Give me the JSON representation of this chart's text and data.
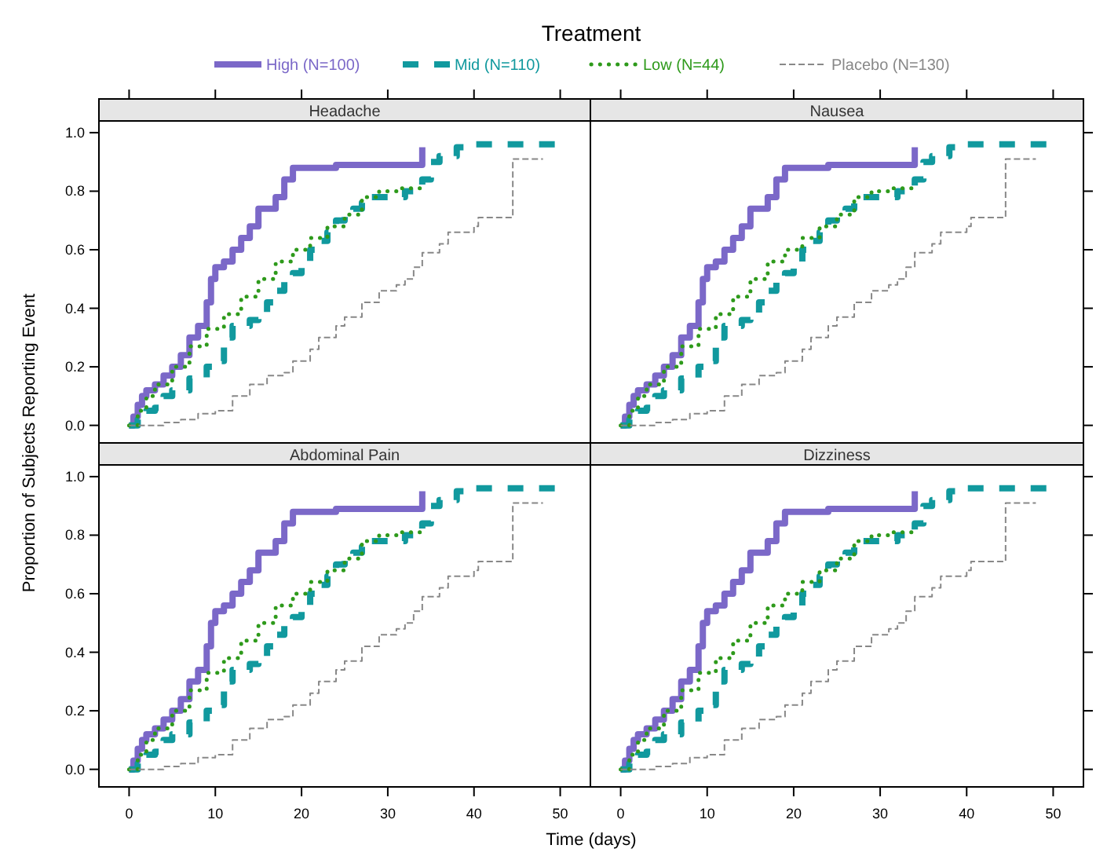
{
  "chart_data": [
    {
      "type": "step",
      "title": "Headache",
      "legend_title": "Treatment",
      "legend": "top",
      "ylabel": "Proportion of Subjects Reporting Event",
      "xlim": [
        -3.5,
        53.5
      ],
      "ylim": [
        -0.06,
        1.04
      ],
      "xticks": [
        {
          "value": 0,
          "label": null
        },
        {
          "value": 10,
          "label": null
        },
        {
          "value": 20,
          "label": null
        },
        {
          "value": 30,
          "label": null
        },
        {
          "value": 40,
          "label": null
        },
        {
          "value": 50,
          "label": null
        }
      ],
      "yticks": [
        {
          "value": 0,
          "label": "0.0"
        },
        {
          "value": 0.2,
          "label": "0.2"
        },
        {
          "value": 0.4,
          "label": "0.4"
        },
        {
          "value": 0.6,
          "label": "0.6"
        },
        {
          "value": 0.8,
          "label": "0.8"
        },
        {
          "value": 1,
          "label": "1.0"
        }
      ],
      "tick_labels": "y",
      "grid": false,
      "series": [
        {
          "name": "High (N=100)",
          "color": "#7b68c8",
          "line_style": "solid",
          "x": [
            0,
            0.5,
            1,
            1.5,
            2,
            3,
            4,
            5,
            6,
            7,
            8,
            9,
            9.5,
            10,
            11,
            12,
            13,
            14,
            15,
            16,
            17,
            18,
            19,
            22,
            24,
            34,
            34
          ],
          "values": [
            0,
            0.03,
            0.07,
            0.1,
            0.12,
            0.14,
            0.17,
            0.2,
            0.24,
            0.3,
            0.34,
            0.42,
            0.5,
            0.54,
            0.56,
            0.6,
            0.64,
            0.68,
            0.74,
            0.74,
            0.78,
            0.84,
            0.88,
            0.88,
            0.89,
            0.89,
            0.95
          ]
        },
        {
          "name": "Mid (N=110)",
          "color": "#11999e",
          "line_style": "dashed",
          "x": [
            0,
            1,
            2,
            3,
            4,
            5,
            7,
            9,
            10,
            11,
            12,
            14,
            15,
            16,
            17,
            18,
            19,
            20,
            21,
            22,
            23,
            24,
            25,
            26,
            27,
            28,
            30,
            32,
            34,
            35,
            36,
            38,
            40,
            50
          ],
          "values": [
            0,
            0.02,
            0.05,
            0.06,
            0.1,
            0.12,
            0.16,
            0.2,
            0.22,
            0.3,
            0.34,
            0.36,
            0.38,
            0.42,
            0.46,
            0.5,
            0.52,
            0.55,
            0.6,
            0.63,
            0.66,
            0.7,
            0.72,
            0.74,
            0.76,
            0.78,
            0.78,
            0.8,
            0.84,
            0.9,
            0.92,
            0.95,
            0.96,
            0.96
          ]
        },
        {
          "name": "Low (N=44)",
          "color": "#2e9a1b",
          "line_style": "dotted",
          "x": [
            0,
            1,
            2,
            3,
            5,
            7,
            9,
            11,
            13,
            15,
            17,
            19,
            21,
            23,
            25,
            27,
            29,
            31,
            34
          ],
          "values": [
            0,
            0.05,
            0.1,
            0.14,
            0.2,
            0.27,
            0.33,
            0.38,
            0.44,
            0.5,
            0.56,
            0.6,
            0.64,
            0.68,
            0.72,
            0.78,
            0.8,
            0.81,
            0.81
          ]
        },
        {
          "name": "Placebo (N=130)",
          "color": "#888888",
          "line_style": "dashed",
          "x": [
            0,
            2,
            4,
            6,
            8,
            10,
            12,
            14,
            16,
            18,
            19,
            21,
            22,
            24,
            25,
            27,
            29,
            31,
            32,
            33,
            34,
            36,
            37,
            40,
            40.5,
            44,
            44.5,
            48
          ],
          "values": [
            0,
            0,
            0.01,
            0.02,
            0.04,
            0.05,
            0.1,
            0.14,
            0.17,
            0.18,
            0.22,
            0.26,
            0.3,
            0.34,
            0.37,
            0.42,
            0.46,
            0.48,
            0.5,
            0.54,
            0.59,
            0.62,
            0.66,
            0.68,
            0.71,
            0.71,
            0.91,
            0.91
          ]
        }
      ]
    },
    {
      "type": "step",
      "title": "Nausea",
      "xlim": [
        -3.5,
        53.5
      ],
      "ylim": [
        -0.06,
        1.04
      ],
      "xticks": [
        {
          "value": 0,
          "label": null
        },
        {
          "value": 10,
          "label": null
        },
        {
          "value": 20,
          "label": null
        },
        {
          "value": 30,
          "label": null
        },
        {
          "value": 40,
          "label": null
        },
        {
          "value": 50,
          "label": null
        }
      ],
      "yticks": [
        {
          "value": 0,
          "label": null
        },
        {
          "value": 0.2,
          "label": null
        },
        {
          "value": 0.4,
          "label": null
        },
        {
          "value": 0.6,
          "label": null
        },
        {
          "value": 0.8,
          "label": null
        },
        {
          "value": 1,
          "label": null
        }
      ],
      "tick_labels": false,
      "grid": false,
      "series": [
        {
          "color": "#7b68c8",
          "line_style": "solid",
          "x": [
            0,
            0.5,
            1,
            1.5,
            2,
            3,
            4,
            5,
            6,
            7,
            8,
            9,
            9.5,
            10,
            11,
            12,
            13,
            14,
            15,
            16,
            17,
            18,
            19,
            22,
            24,
            34,
            34
          ],
          "values": [
            0,
            0.03,
            0.07,
            0.1,
            0.12,
            0.14,
            0.17,
            0.2,
            0.24,
            0.3,
            0.34,
            0.42,
            0.5,
            0.54,
            0.56,
            0.6,
            0.64,
            0.68,
            0.74,
            0.74,
            0.78,
            0.84,
            0.88,
            0.88,
            0.89,
            0.89,
            0.95
          ]
        },
        {
          "color": "#11999e",
          "line_style": "dashed",
          "x": [
            0,
            1,
            2,
            3,
            4,
            5,
            7,
            9,
            10,
            11,
            12,
            14,
            15,
            16,
            17,
            18,
            19,
            20,
            21,
            22,
            23,
            24,
            25,
            26,
            27,
            28,
            30,
            32,
            34,
            35,
            36,
            38,
            40,
            50
          ],
          "values": [
            0,
            0.02,
            0.05,
            0.06,
            0.1,
            0.12,
            0.16,
            0.2,
            0.22,
            0.3,
            0.34,
            0.36,
            0.38,
            0.42,
            0.46,
            0.5,
            0.52,
            0.55,
            0.6,
            0.63,
            0.66,
            0.7,
            0.72,
            0.74,
            0.76,
            0.78,
            0.78,
            0.8,
            0.84,
            0.9,
            0.92,
            0.95,
            0.96,
            0.96
          ]
        },
        {
          "color": "#2e9a1b",
          "line_style": "dotted",
          "x": [
            0,
            1,
            2,
            3,
            5,
            7,
            9,
            11,
            13,
            15,
            17,
            19,
            21,
            23,
            25,
            27,
            29,
            31,
            34
          ],
          "values": [
            0,
            0.05,
            0.1,
            0.14,
            0.2,
            0.27,
            0.33,
            0.38,
            0.44,
            0.5,
            0.56,
            0.6,
            0.64,
            0.68,
            0.72,
            0.78,
            0.8,
            0.81,
            0.81
          ]
        },
        {
          "color": "#888888",
          "line_style": "dashed",
          "x": [
            0,
            2,
            4,
            6,
            8,
            10,
            12,
            14,
            16,
            18,
            19,
            21,
            22,
            24,
            25,
            27,
            29,
            31,
            32,
            33,
            34,
            36,
            37,
            40,
            40.5,
            44,
            44.5,
            48
          ],
          "values": [
            0,
            0,
            0.01,
            0.02,
            0.04,
            0.05,
            0.1,
            0.14,
            0.17,
            0.18,
            0.22,
            0.26,
            0.3,
            0.34,
            0.37,
            0.42,
            0.46,
            0.48,
            0.5,
            0.54,
            0.59,
            0.62,
            0.66,
            0.68,
            0.71,
            0.71,
            0.91,
            0.91
          ]
        }
      ]
    },
    {
      "type": "step",
      "title": "Abdominal Pain",
      "xlabel": "Time (days)",
      "xlim": [
        -3.5,
        53.5
      ],
      "ylim": [
        -0.06,
        1.04
      ],
      "xticks": [
        0,
        10,
        20,
        30,
        40,
        50
      ],
      "yticks": [
        {
          "value": 0,
          "label": "0.0"
        },
        {
          "value": 0.2,
          "label": "0.2"
        },
        {
          "value": 0.4,
          "label": "0.4"
        },
        {
          "value": 0.6,
          "label": "0.6"
        },
        {
          "value": 0.8,
          "label": "0.8"
        },
        {
          "value": 1,
          "label": "1.0"
        }
      ],
      "grid": false,
      "series": [
        {
          "color": "#7b68c8",
          "line_style": "solid",
          "x": [
            0,
            0.5,
            1,
            1.5,
            2,
            3,
            4,
            5,
            6,
            7,
            8,
            9,
            9.5,
            10,
            11,
            12,
            13,
            14,
            15,
            16,
            17,
            18,
            19,
            22,
            24,
            34,
            34
          ],
          "values": [
            0,
            0.03,
            0.07,
            0.1,
            0.12,
            0.14,
            0.17,
            0.2,
            0.24,
            0.3,
            0.34,
            0.42,
            0.5,
            0.54,
            0.56,
            0.6,
            0.64,
            0.68,
            0.74,
            0.74,
            0.78,
            0.84,
            0.88,
            0.88,
            0.89,
            0.89,
            0.95
          ]
        },
        {
          "color": "#11999e",
          "line_style": "dashed",
          "x": [
            0,
            1,
            2,
            3,
            4,
            5,
            7,
            9,
            10,
            11,
            12,
            14,
            15,
            16,
            17,
            18,
            19,
            20,
            21,
            22,
            23,
            24,
            25,
            26,
            27,
            28,
            30,
            32,
            34,
            35,
            36,
            38,
            40,
            50
          ],
          "values": [
            0,
            0.02,
            0.05,
            0.06,
            0.1,
            0.12,
            0.16,
            0.2,
            0.22,
            0.3,
            0.34,
            0.36,
            0.38,
            0.42,
            0.46,
            0.5,
            0.52,
            0.55,
            0.6,
            0.63,
            0.66,
            0.7,
            0.72,
            0.74,
            0.76,
            0.78,
            0.78,
            0.8,
            0.84,
            0.9,
            0.92,
            0.95,
            0.96,
            0.96
          ]
        },
        {
          "color": "#2e9a1b",
          "line_style": "dotted",
          "x": [
            0,
            1,
            2,
            3,
            5,
            7,
            9,
            11,
            13,
            15,
            17,
            19,
            21,
            23,
            25,
            27,
            29,
            31,
            34
          ],
          "values": [
            0,
            0.05,
            0.1,
            0.14,
            0.2,
            0.27,
            0.33,
            0.38,
            0.44,
            0.5,
            0.56,
            0.6,
            0.64,
            0.68,
            0.72,
            0.78,
            0.8,
            0.81,
            0.81
          ]
        },
        {
          "color": "#888888",
          "line_style": "dashed",
          "x": [
            0,
            2,
            4,
            6,
            8,
            10,
            12,
            14,
            16,
            18,
            19,
            21,
            22,
            24,
            25,
            27,
            29,
            31,
            32,
            33,
            34,
            36,
            37,
            40,
            40.5,
            44,
            44.5,
            48
          ],
          "values": [
            0,
            0,
            0.01,
            0.02,
            0.04,
            0.05,
            0.1,
            0.14,
            0.17,
            0.18,
            0.22,
            0.26,
            0.3,
            0.34,
            0.37,
            0.42,
            0.46,
            0.48,
            0.5,
            0.54,
            0.59,
            0.62,
            0.66,
            0.68,
            0.71,
            0.71,
            0.91,
            0.91
          ]
        }
      ]
    },
    {
      "type": "step",
      "title": "Dizziness",
      "xlim": [
        -3.5,
        53.5
      ],
      "ylim": [
        -0.06,
        1.04
      ],
      "xticks": [
        0,
        10,
        20,
        30,
        40,
        50
      ],
      "yticks": [
        {
          "value": 0,
          "label": null
        },
        {
          "value": 0.2,
          "label": null
        },
        {
          "value": 0.4,
          "label": null
        },
        {
          "value": 0.6,
          "label": null
        },
        {
          "value": 0.8,
          "label": null
        },
        {
          "value": 1,
          "label": null
        }
      ],
      "tick_labels": "x",
      "grid": false,
      "series": [
        {
          "color": "#7b68c8",
          "line_style": "solid",
          "x": [
            0,
            0.5,
            1,
            1.5,
            2,
            3,
            4,
            5,
            6,
            7,
            8,
            9,
            9.5,
            10,
            11,
            12,
            13,
            14,
            15,
            16,
            17,
            18,
            19,
            22,
            24,
            34,
            34
          ],
          "values": [
            0,
            0.03,
            0.07,
            0.1,
            0.12,
            0.14,
            0.17,
            0.2,
            0.24,
            0.3,
            0.34,
            0.42,
            0.5,
            0.54,
            0.56,
            0.6,
            0.64,
            0.68,
            0.74,
            0.74,
            0.78,
            0.84,
            0.88,
            0.88,
            0.89,
            0.89,
            0.95
          ]
        },
        {
          "color": "#11999e",
          "line_style": "dashed",
          "x": [
            0,
            1,
            2,
            3,
            4,
            5,
            7,
            9,
            10,
            11,
            12,
            14,
            15,
            16,
            17,
            18,
            19,
            20,
            21,
            22,
            23,
            24,
            25,
            26,
            27,
            28,
            30,
            32,
            34,
            35,
            36,
            38,
            40,
            50
          ],
          "values": [
            0,
            0.02,
            0.05,
            0.06,
            0.1,
            0.12,
            0.16,
            0.2,
            0.22,
            0.3,
            0.34,
            0.36,
            0.38,
            0.42,
            0.46,
            0.5,
            0.52,
            0.55,
            0.6,
            0.63,
            0.66,
            0.7,
            0.72,
            0.74,
            0.76,
            0.78,
            0.78,
            0.8,
            0.84,
            0.9,
            0.92,
            0.95,
            0.96,
            0.96
          ]
        },
        {
          "color": "#2e9a1b",
          "line_style": "dotted",
          "x": [
            0,
            1,
            2,
            3,
            5,
            7,
            9,
            11,
            13,
            15,
            17,
            19,
            21,
            23,
            25,
            27,
            29,
            31,
            34
          ],
          "values": [
            0,
            0.05,
            0.1,
            0.14,
            0.2,
            0.27,
            0.33,
            0.38,
            0.44,
            0.5,
            0.56,
            0.6,
            0.64,
            0.68,
            0.72,
            0.78,
            0.8,
            0.81,
            0.81
          ]
        },
        {
          "color": "#888888",
          "line_style": "dashed",
          "x": [
            0,
            2,
            4,
            6,
            8,
            10,
            12,
            14,
            16,
            18,
            19,
            21,
            22,
            24,
            25,
            27,
            29,
            31,
            32,
            33,
            34,
            36,
            37,
            40,
            40.5,
            44,
            44.5,
            48
          ],
          "values": [
            0,
            0,
            0.01,
            0.02,
            0.04,
            0.05,
            0.1,
            0.14,
            0.17,
            0.18,
            0.22,
            0.26,
            0.3,
            0.34,
            0.37,
            0.42,
            0.46,
            0.48,
            0.5,
            0.54,
            0.59,
            0.62,
            0.66,
            0.68,
            0.71,
            0.71,
            0.91,
            0.91
          ]
        }
      ]
    }
  ]
}
